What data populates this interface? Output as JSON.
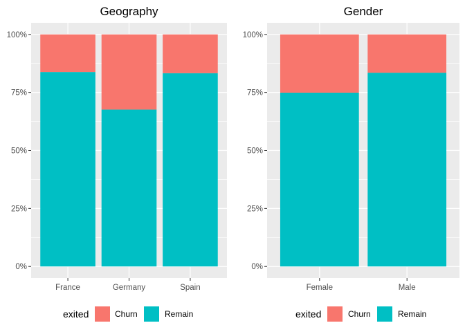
{
  "chart_data": [
    {
      "type": "bar",
      "stacked": true,
      "title": "Geography",
      "categories": [
        "France",
        "Germany",
        "Spain"
      ],
      "series": [
        {
          "name": "Churn",
          "color": "#F8766D",
          "values": [
            16.2,
            32.4,
            16.7
          ]
        },
        {
          "name": "Remain",
          "color": "#00BFC4",
          "values": [
            83.8,
            67.6,
            83.3
          ]
        }
      ],
      "yticks": [
        "0%",
        "25%",
        "50%",
        "75%",
        "100%"
      ],
      "ylim": [
        0,
        100
      ],
      "grid": true
    },
    {
      "type": "bar",
      "stacked": true,
      "title": "Gender",
      "categories": [
        "Female",
        "Male"
      ],
      "series": [
        {
          "name": "Churn",
          "color": "#F8766D",
          "values": [
            25.1,
            16.5
          ]
        },
        {
          "name": "Remain",
          "color": "#00BFC4",
          "values": [
            74.9,
            83.5
          ]
        }
      ],
      "yticks": [
        "0%",
        "25%",
        "50%",
        "75%",
        "100%"
      ],
      "ylim": [
        0,
        100
      ],
      "grid": true
    }
  ],
  "legend": {
    "title": "exited",
    "placement": "bottom",
    "items": [
      {
        "label": "Churn",
        "color": "#F8766D"
      },
      {
        "label": "Remain",
        "color": "#00BFC4"
      }
    ]
  },
  "panel_background": "#EBEBEB",
  "grid_color": "#FFFFFF"
}
